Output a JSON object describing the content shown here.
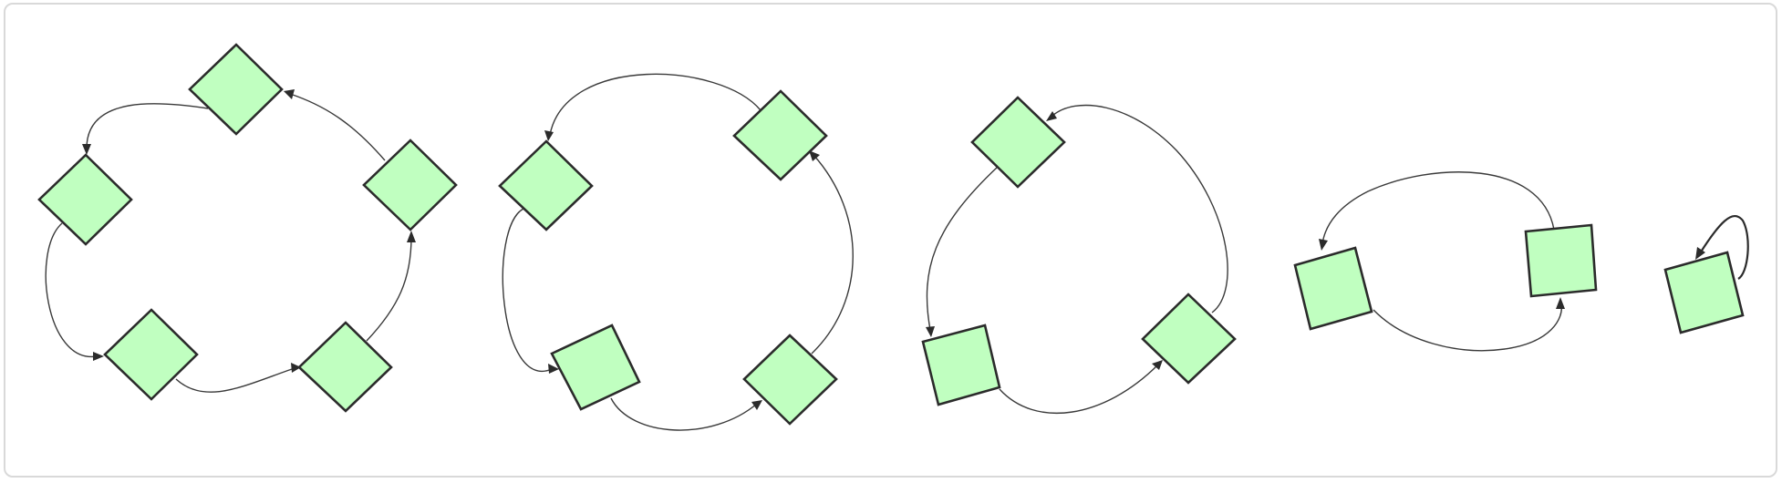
{
  "diagram": {
    "type": "directed-graph",
    "node_color": "#c0ffc0",
    "node_stroke": "#2b2b2b",
    "edge_color": "#3a3a3a",
    "frame_border": "#d9d9d9",
    "components": [
      {
        "name": "cycle-of-5",
        "nodes": 5,
        "edges": 5
      },
      {
        "name": "cycle-of-4",
        "nodes": 4,
        "edges": 4
      },
      {
        "name": "cycle-of-3",
        "nodes": 3,
        "edges": 3
      },
      {
        "name": "cycle-of-2",
        "nodes": 2,
        "edges": 2
      },
      {
        "name": "self-loop",
        "nodes": 1,
        "edges": 1
      }
    ]
  }
}
